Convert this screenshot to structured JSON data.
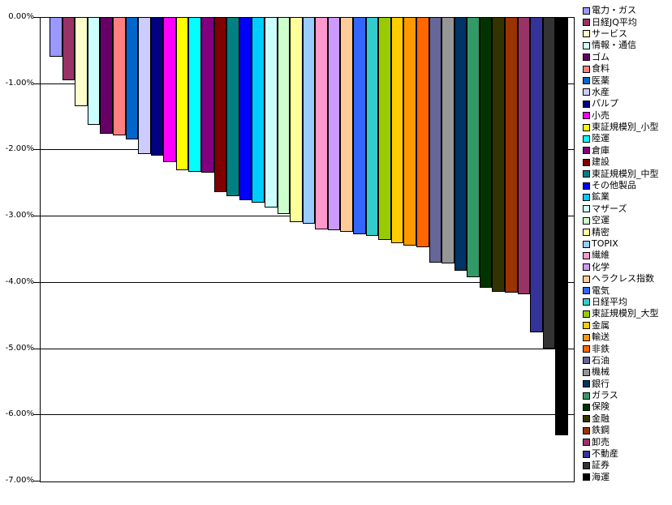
{
  "chart_data": {
    "type": "bar",
    "title": "",
    "orientation": "vertical",
    "value_unit": "percent",
    "ylim": [
      -7,
      0
    ],
    "ytick_labels": [
      "0.00%",
      "-1.00%",
      "-2.00%",
      "-3.00%",
      "-4.00%",
      "-5.00%",
      "-6.00%",
      "-7.00%"
    ],
    "ytick_values": [
      0,
      -1,
      -2,
      -3,
      -4,
      -5,
      -6,
      -7
    ],
    "grid": true,
    "legend_position": "right",
    "categories": [
      "電力・ガス",
      "日経JQ平均",
      "サービス",
      "情報・通信",
      "ゴム",
      "食料",
      "医薬",
      "水産",
      "パルプ",
      "小売",
      "東証規模別_小型",
      "陸運",
      "倉庫",
      "建設",
      "東証規模別_中型",
      "その他製品",
      "鉱業",
      "マザーズ",
      "空運",
      "精密",
      "TOPIX",
      "繊維",
      "化学",
      "ヘラクレス指数",
      "電気",
      "日経平均",
      "東証規模別_大型",
      "金属",
      "輸送",
      "非鉄",
      "石油",
      "機械",
      "銀行",
      "ガラス",
      "保険",
      "金融",
      "鉄鋼",
      "卸売",
      "不動産",
      "証券",
      "海運"
    ],
    "values": [
      -0.59,
      -0.94,
      -1.34,
      -1.61,
      -1.75,
      -1.77,
      -1.83,
      -2.05,
      -2.08,
      -2.18,
      -2.3,
      -2.33,
      -2.34,
      -2.63,
      -2.69,
      -2.75,
      -2.79,
      -2.86,
      -2.96,
      -3.08,
      -3.11,
      -3.2,
      -3.21,
      -3.23,
      -3.27,
      -3.29,
      -3.35,
      -3.4,
      -3.44,
      -3.46,
      -3.69,
      -3.71,
      -3.82,
      -3.91,
      -4.08,
      -4.14,
      -4.15,
      -4.17,
      -4.75,
      -4.99,
      -6.3
    ],
    "colors": [
      "#9999FF",
      "#993366",
      "#FFFFCC",
      "#CCFFFF",
      "#660066",
      "#FF8080",
      "#0066CC",
      "#CCCCFF",
      "#000080",
      "#FF00FF",
      "#FFFF00",
      "#00FFFF",
      "#800080",
      "#800000",
      "#008080",
      "#0000FF",
      "#00CCFF",
      "#CCFFFF",
      "#CCFFCC",
      "#FFFF99",
      "#99CCFF",
      "#FF99CC",
      "#CC99FF",
      "#FFCC99",
      "#3366FF",
      "#33CCCC",
      "#99CC00",
      "#FFCC00",
      "#FF9900",
      "#FF6600",
      "#666699",
      "#969696",
      "#003366",
      "#339966",
      "#003300",
      "#333300",
      "#993300",
      "#993366",
      "#333399",
      "#333333",
      "#000000"
    ],
    "axis_color": "#000000",
    "background_color": "#FFFFFF"
  }
}
